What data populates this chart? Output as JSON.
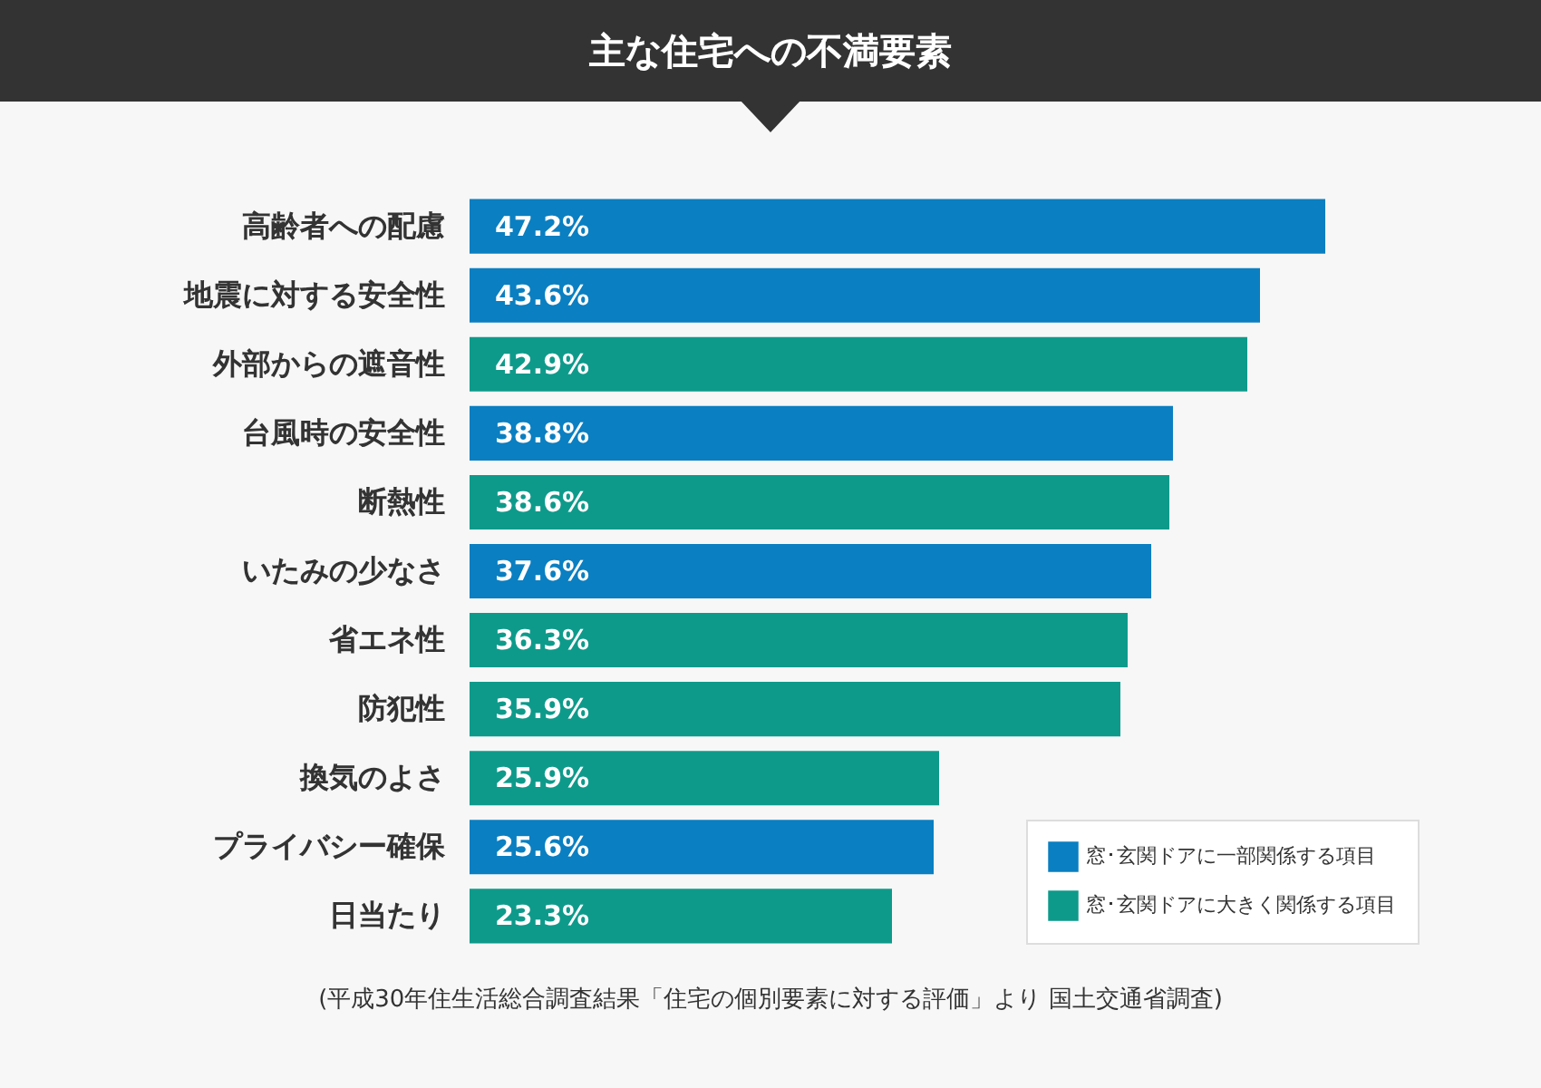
{
  "chart_data": {
    "type": "bar",
    "orientation": "horizontal",
    "title": "主な住宅への不満要素",
    "categories": [
      "高齢者への配慮",
      "地震に対する安全性",
      "外部からの遮音性",
      "台風時の安全性",
      "断熱性",
      "いたみの少なさ",
      "省エネ性",
      "防犯性",
      "換気のよさ",
      "プライバシー確保",
      "日当たり"
    ],
    "series": [
      {
        "name": "窓･玄関ドアに一部関係する項目",
        "color": "#0a7fc1",
        "values": [
          47.2,
          43.6,
          null,
          38.8,
          null,
          37.6,
          null,
          null,
          null,
          25.6,
          null
        ],
        "value_labels": [
          "47.2%",
          "43.6%",
          null,
          "38.8%",
          null,
          "37.6%",
          null,
          null,
          null,
          "25.6%",
          null
        ]
      },
      {
        "name": "窓･玄関ドアに大きく関係する項目",
        "color": "#0e9a8b",
        "values": [
          null,
          null,
          42.9,
          null,
          38.6,
          null,
          36.3,
          35.9,
          25.9,
          null,
          23.3
        ],
        "value_labels": [
          null,
          null,
          "42.9%",
          null,
          "38.6%",
          null,
          "36.3%",
          "35.9%",
          "25.9%",
          null,
          "23.3%"
        ]
      }
    ],
    "legend": "bottom right",
    "annotations": [
      "(平成30年住生活総合調査結果「住宅の個別要素に対する評価」より 国土交通省調査)"
    ]
  }
}
